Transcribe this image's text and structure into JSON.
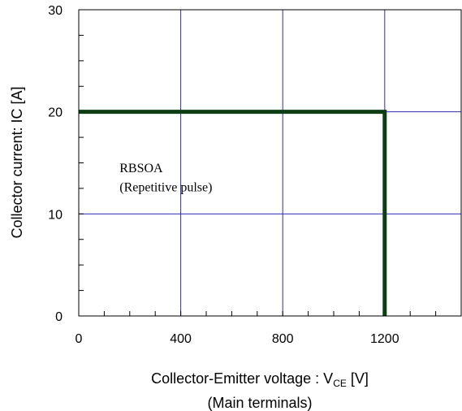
{
  "chart_data": {
    "type": "line",
    "title": "",
    "xlabel": {
      "prefix": "Collector-Emitter voltage : V",
      "subscript": "CE",
      "suffix": " [V]",
      "second_line": "(Main terminals)"
    },
    "ylabel": "Collector current: IC [A]",
    "xlim": [
      0,
      1500
    ],
    "ylim": [
      0,
      30
    ],
    "x_ticks": [
      0,
      400,
      800,
      1200
    ],
    "y_ticks": [
      0,
      10,
      20,
      30
    ],
    "x_tick_labels": [
      "0",
      "400",
      "800",
      "1200"
    ],
    "y_tick_labels": [
      "0",
      "10",
      "20",
      "30"
    ],
    "grid": true,
    "series": [
      {
        "color": "#0d3d12",
        "points": [
          [
            0,
            20
          ],
          [
            1200,
            20
          ],
          [
            1200,
            0
          ]
        ]
      }
    ],
    "annotations": [
      {
        "text": "RBSOA",
        "x": 160,
        "y": 14.1
      },
      {
        "text": "(Repetitive pulse)",
        "x": 160,
        "y": 12.2
      }
    ]
  },
  "colors": {
    "grid": "#2e2eb8",
    "frame": "#000000",
    "series": "#0d3d12"
  }
}
